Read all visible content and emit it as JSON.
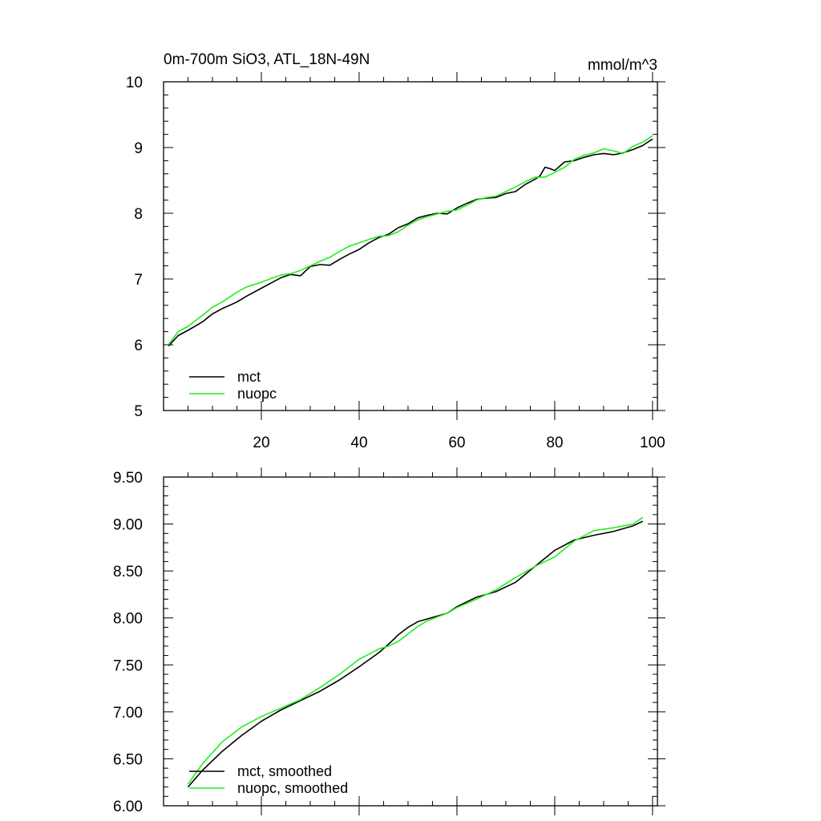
{
  "colors": {
    "mct": "#000000",
    "nuopc": "#22ee22",
    "axis": "#000000"
  },
  "chart_data": [
    {
      "type": "line",
      "title": "0m-700m SiO3, ATL_18N-49N",
      "units": "mmol/m^3",
      "xlim": [
        0,
        101
      ],
      "ylim": [
        5,
        10
      ],
      "xticks": [
        20,
        40,
        60,
        80,
        100
      ],
      "xtick_labels": [
        "20",
        "40",
        "60",
        "80",
        "100"
      ],
      "yticks": [
        5,
        6,
        7,
        8,
        9,
        10
      ],
      "ytick_labels": [
        "5",
        "6",
        "7",
        "8",
        "9",
        "10"
      ],
      "legend_position": "bottom-left",
      "series": [
        {
          "name": "mct",
          "x": [
            1,
            3,
            5,
            8,
            10,
            12,
            15,
            17,
            20,
            22,
            24,
            26,
            28,
            30,
            32,
            34,
            36,
            38,
            40,
            42,
            44,
            46,
            48,
            50,
            52,
            54,
            56,
            58,
            60,
            62,
            64,
            66,
            68,
            70,
            72,
            74,
            76,
            77,
            78,
            79,
            80,
            82,
            84,
            86,
            88,
            90,
            92,
            94,
            96,
            98,
            100
          ],
          "values": [
            5.98,
            6.14,
            6.22,
            6.35,
            6.47,
            6.55,
            6.65,
            6.74,
            6.86,
            6.94,
            7.02,
            7.07,
            7.05,
            7.19,
            7.22,
            7.21,
            7.3,
            7.38,
            7.45,
            7.55,
            7.63,
            7.68,
            7.78,
            7.84,
            7.93,
            7.97,
            8.0,
            7.99,
            8.08,
            8.15,
            8.21,
            8.23,
            8.24,
            8.3,
            8.33,
            8.44,
            8.52,
            8.57,
            8.7,
            8.68,
            8.65,
            8.78,
            8.8,
            8.85,
            8.89,
            8.91,
            8.89,
            8.92,
            8.97,
            9.03,
            9.13
          ]
        },
        {
          "name": "nuopc",
          "x": [
            1,
            3,
            5,
            8,
            10,
            12,
            15,
            17,
            20,
            22,
            24,
            26,
            28,
            30,
            32,
            34,
            36,
            38,
            40,
            42,
            44,
            46,
            48,
            50,
            52,
            54,
            56,
            58,
            60,
            62,
            64,
            66,
            68,
            70,
            72,
            74,
            76,
            78,
            80,
            82,
            84,
            86,
            88,
            90,
            92,
            94,
            96,
            98,
            100
          ],
          "values": [
            6.0,
            6.2,
            6.28,
            6.45,
            6.57,
            6.65,
            6.8,
            6.88,
            6.95,
            7.01,
            7.06,
            7.08,
            7.13,
            7.2,
            7.27,
            7.33,
            7.42,
            7.5,
            7.55,
            7.6,
            7.65,
            7.66,
            7.72,
            7.82,
            7.9,
            7.95,
            7.99,
            8.03,
            8.05,
            8.12,
            8.2,
            8.24,
            8.26,
            8.33,
            8.4,
            8.48,
            8.55,
            8.55,
            8.62,
            8.7,
            8.82,
            8.88,
            8.92,
            8.98,
            8.95,
            8.91,
            9.02,
            9.08,
            9.18
          ]
        }
      ]
    },
    {
      "type": "line",
      "title": "",
      "xlim": [
        0,
        101
      ],
      "ylim": [
        6.0,
        9.5
      ],
      "xticks": [
        20,
        40,
        60,
        80,
        100
      ],
      "xtick_labels": [],
      "yticks": [
        6.0,
        6.5,
        7.0,
        7.5,
        8.0,
        8.5,
        9.0,
        9.5
      ],
      "ytick_labels": [
        "6.00",
        "6.50",
        "7.00",
        "7.50",
        "8.00",
        "8.50",
        "9.00",
        "9.50"
      ],
      "legend_position": "bottom-left",
      "series": [
        {
          "name": "mct, smoothed",
          "x": [
            5,
            8,
            12,
            16,
            20,
            24,
            28,
            32,
            36,
            40,
            44,
            46,
            48,
            50,
            52,
            54,
            56,
            58,
            60,
            64,
            68,
            72,
            76,
            80,
            84,
            88,
            92,
            96,
            98
          ],
          "values": [
            6.2,
            6.38,
            6.58,
            6.75,
            6.9,
            7.02,
            7.12,
            7.22,
            7.34,
            7.48,
            7.63,
            7.72,
            7.82,
            7.9,
            7.96,
            7.99,
            8.02,
            8.05,
            8.12,
            8.22,
            8.28,
            8.38,
            8.55,
            8.72,
            8.83,
            8.88,
            8.92,
            8.98,
            9.03
          ]
        },
        {
          "name": "nuopc, smoothed",
          "x": [
            5,
            8,
            12,
            16,
            20,
            24,
            28,
            32,
            36,
            40,
            44,
            46,
            48,
            50,
            52,
            54,
            56,
            58,
            60,
            64,
            68,
            72,
            76,
            80,
            84,
            88,
            92,
            96,
            98
          ],
          "values": [
            6.23,
            6.45,
            6.68,
            6.84,
            6.95,
            7.04,
            7.13,
            7.26,
            7.4,
            7.56,
            7.67,
            7.7,
            7.75,
            7.83,
            7.91,
            7.97,
            8.01,
            8.05,
            8.11,
            8.2,
            8.3,
            8.43,
            8.55,
            8.65,
            8.82,
            8.93,
            8.96,
            9.0,
            9.07
          ]
        }
      ]
    }
  ]
}
